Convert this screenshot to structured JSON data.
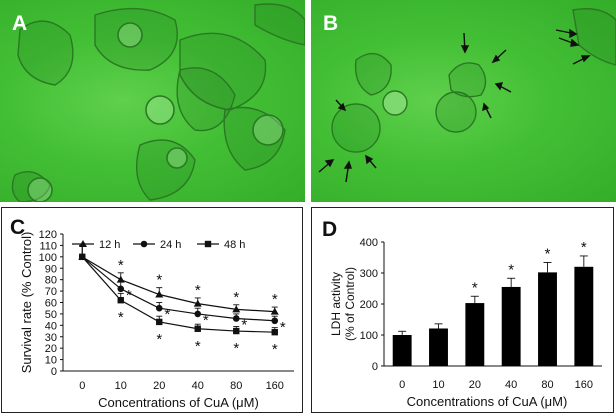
{
  "panels": {
    "a_label": "A",
    "b_label": "B",
    "c_label": "C",
    "d_label": "D"
  },
  "colors": {
    "micrograph_bg": "#43bf35",
    "cell_outline": "#2a7a22",
    "bar_fill": "#000000"
  },
  "chart_data": [
    {
      "type": "line",
      "panel": "C",
      "xlabel": "Concentrations of CuA (μM)",
      "ylabel": "Survival rate (% Control)",
      "categories": [
        "0",
        "10",
        "20",
        "40",
        "80",
        "160"
      ],
      "ylim": [
        0,
        120
      ],
      "yticks": [
        0,
        10,
        20,
        30,
        40,
        50,
        60,
        70,
        80,
        90,
        100,
        110,
        120
      ],
      "legend_position": "top",
      "series": [
        {
          "name": "12 h",
          "marker": "triangle",
          "values": [
            100,
            80,
            67,
            59,
            54,
            52
          ],
          "errors": [
            10,
            6,
            6,
            5,
            4,
            4
          ],
          "significant": [
            false,
            true,
            true,
            true,
            true,
            true
          ]
        },
        {
          "name": "24 h",
          "marker": "circle",
          "values": [
            100,
            72,
            55,
            50,
            46,
            44
          ],
          "errors": [
            10,
            6,
            5,
            5,
            4,
            4
          ],
          "significant": [
            false,
            true,
            true,
            true,
            true,
            true
          ]
        },
        {
          "name": "48 h",
          "marker": "square",
          "values": [
            100,
            62,
            43,
            37,
            35,
            34
          ],
          "errors": [
            10,
            6,
            5,
            4,
            4,
            4
          ],
          "significant": [
            false,
            true,
            true,
            true,
            true,
            true
          ]
        }
      ],
      "significance_symbol": "*"
    },
    {
      "type": "bar",
      "panel": "D",
      "xlabel": "Concentrations of CuA (μM)",
      "ylabel_line1": "LDH activity",
      "ylabel_line2": "(% of Control)",
      "categories": [
        "0",
        "10",
        "20",
        "40",
        "80",
        "160"
      ],
      "ylim": [
        0,
        400
      ],
      "yticks": [
        0,
        100,
        200,
        300,
        400
      ],
      "values": [
        100,
        121,
        203,
        255,
        302,
        320
      ],
      "errors": [
        12,
        15,
        22,
        28,
        32,
        35
      ],
      "significant": [
        false,
        false,
        true,
        true,
        true,
        true
      ],
      "significance_symbol": "*"
    }
  ]
}
